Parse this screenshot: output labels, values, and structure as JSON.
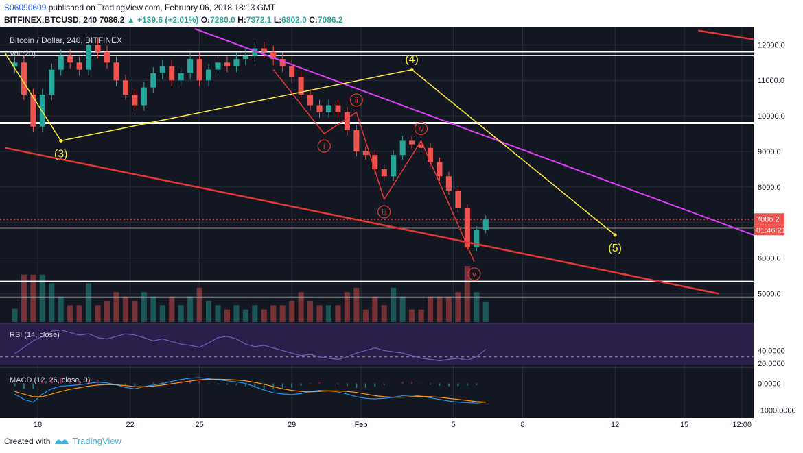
{
  "header": {
    "author": "S06090609",
    "published": "published on TradingView.com, February 06, 2018 18:13 GMT",
    "symbol": "BITFINEX:BTCUSD, 240",
    "last": "7086.2",
    "change": "▲ +139.6 (+2.01%)",
    "o_label": "O:",
    "o": "7280.0",
    "h_label": "H:",
    "h": "7372.1",
    "l_label": "L:",
    "l": "6802.0",
    "c_label": "C:",
    "c": "7086.2"
  },
  "footer": {
    "created_with": "Created with",
    "brand": "TradingView"
  },
  "colors": {
    "background": "#131722",
    "up": "#26a69a",
    "down": "#ef5350",
    "wave": "#ffeb3b",
    "channel": "#e040fb",
    "trend": "#e53935",
    "rsi": "#7e57c2",
    "macd": "#2196f3",
    "signal": "#ff9800"
  },
  "chart_data": {
    "type": "candlestick",
    "title": "Bitcoin / Dollar, 240, BITFINEX",
    "volume_label": "Vol (20)",
    "price_axis": {
      "ticks": [
        "12000.0",
        "11000.0",
        "10000.0",
        "9000.0",
        "8000.0",
        "7000.0",
        "6000.0",
        "5000.0"
      ],
      "values": [
        12000,
        11000,
        10000,
        9000,
        8000,
        7000,
        6000,
        5000
      ],
      "ylim": [
        4200,
        12450
      ]
    },
    "last_price_label": "7086.2",
    "countdown_label": "01:46:21",
    "time_axis": {
      "ticks": [
        "18",
        "22",
        "25",
        "29",
        "Feb",
        "5",
        "8",
        "12",
        "15",
        "12:00"
      ],
      "values": [
        1.0,
        5.0,
        8.0,
        12.0,
        15.0,
        19.0,
        22.0,
        26.0,
        29.0,
        31.5
      ],
      "xlim": [
        -0.4,
        32.0
      ]
    },
    "close_series": {
      "x": [
        0.0,
        0.4,
        0.8,
        1.2,
        1.6,
        2.0,
        2.4,
        2.8,
        3.2,
        3.6,
        4.0,
        4.4,
        4.8,
        5.2,
        5.6,
        6.0,
        6.4,
        6.8,
        7.2,
        7.6,
        8.0,
        8.4,
        8.8,
        9.2,
        9.6,
        10.0,
        10.4,
        10.8,
        11.2,
        11.6,
        12.0,
        12.4,
        12.8,
        13.2,
        13.6,
        14.0,
        14.4,
        14.8,
        15.2,
        15.6,
        16.0,
        16.4,
        16.8,
        17.2,
        17.6,
        18.0,
        18.4,
        18.8,
        19.2,
        19.6,
        20.0,
        20.4
      ],
      "close": [
        11500,
        10600,
        9700,
        10600,
        11300,
        11700,
        11500,
        11300,
        12000,
        11800,
        11500,
        11000,
        10600,
        10300,
        10800,
        11200,
        11400,
        11000,
        11200,
        11600,
        11000,
        11300,
        11500,
        11400,
        11600,
        11700,
        11900,
        11800,
        11600,
        11400,
        11100,
        10600,
        10300,
        10100,
        10300,
        10100,
        9600,
        9000,
        8900,
        8500,
        8300,
        8900,
        9300,
        9200,
        9100,
        8700,
        8300,
        7900,
        7400,
        6300,
        6800,
        7086
      ]
    },
    "horizontal_levels": [
      11800,
      11700,
      9800,
      6850,
      5350,
      4900
    ],
    "elliott_major": [
      {
        "label": "(3)",
        "x": 2.0,
        "y": 9300
      },
      {
        "label": "(4)",
        "x": 17.2,
        "y": 11300
      },
      {
        "label": "(5)",
        "x": 26.0,
        "y": 6650
      }
    ],
    "elliott_minor": [
      {
        "label": "i",
        "x": 13.4,
        "y": 9500
      },
      {
        "label": "ii",
        "x": 14.8,
        "y": 10100
      },
      {
        "label": "iii",
        "x": 16.0,
        "y": 7650
      },
      {
        "label": "iv",
        "x": 17.6,
        "y": 9300
      },
      {
        "label": "v",
        "x": 19.9,
        "y": 5900
      }
    ],
    "indicators": {
      "rsi": {
        "label": "RSI (14, close)",
        "ticks": [
          "40.0000",
          "20.0000"
        ],
        "ylim": [
          18,
          80
        ],
        "dashed_level": 30,
        "values": [
          35,
          45,
          55,
          62,
          70,
          72,
          68,
          64,
          66,
          60,
          58,
          62,
          66,
          64,
          60,
          55,
          58,
          54,
          50,
          48,
          45,
          52,
          60,
          62,
          58,
          50,
          46,
          48,
          44,
          40,
          36,
          32,
          34,
          30,
          28,
          26,
          30,
          36,
          40,
          44,
          40,
          38,
          36,
          32,
          28,
          26,
          24,
          26,
          28,
          25,
          30,
          42
        ]
      },
      "macd": {
        "label": "MACD (12, 26, close, 9)",
        "ticks": [
          "0.0000",
          "-1000.0000"
        ],
        "ylim": [
          -1200,
          350
        ],
        "macd": [
          -400,
          -600,
          -700,
          -400,
          -200,
          -100,
          -80,
          -50,
          0,
          50,
          20,
          -50,
          -150,
          -200,
          -120,
          -60,
          0,
          80,
          150,
          200,
          220,
          180,
          140,
          100,
          60,
          0,
          -120,
          -250,
          -350,
          -400,
          -420,
          -380,
          -300,
          -260,
          -280,
          -320,
          -400,
          -500,
          -560,
          -580,
          -560,
          -520,
          -460,
          -440,
          -480,
          -540,
          -600,
          -660,
          -700,
          -720,
          -740,
          -700
        ],
        "signal": [
          -300,
          -400,
          -500,
          -500,
          -400,
          -300,
          -220,
          -160,
          -100,
          -60,
          -40,
          -50,
          -80,
          -120,
          -120,
          -100,
          -60,
          -10,
          40,
          90,
          140,
          160,
          160,
          150,
          130,
          100,
          40,
          -30,
          -120,
          -200,
          -260,
          -300,
          -320,
          -300,
          -280,
          -280,
          -300,
          -340,
          -400,
          -460,
          -500,
          -520,
          -520,
          -500,
          -490,
          -500,
          -520,
          -560,
          -600,
          -640,
          -680,
          -700
        ]
      }
    }
  }
}
